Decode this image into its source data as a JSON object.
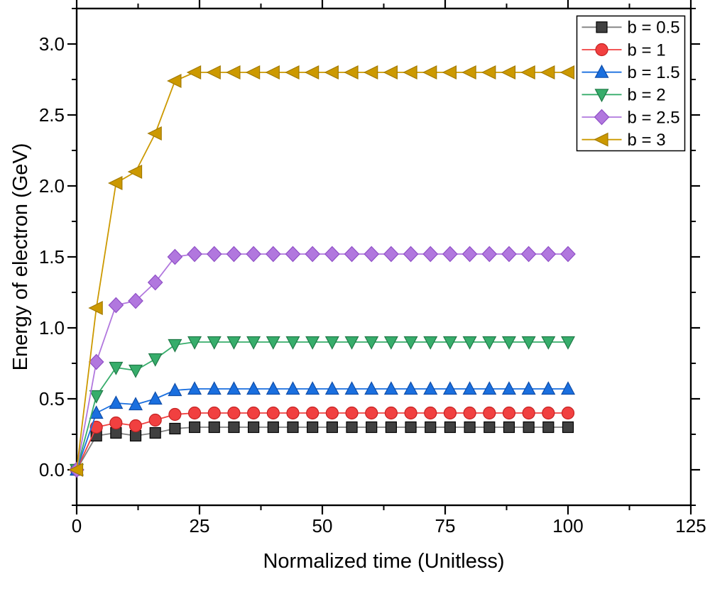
{
  "chart_data": {
    "type": "line",
    "title": "",
    "xlabel": "Normalized time (Unitless)",
    "ylabel": "Energy of electron (GeV)",
    "xlim": [
      0,
      125
    ],
    "ylim": [
      -0.25,
      3.25
    ],
    "grid": false,
    "legend_position": "top-right",
    "x_tick_values": [
      0,
      25,
      50,
      75,
      100,
      125
    ],
    "x_tick_labels": [
      "0",
      "25",
      "50",
      "75",
      "100",
      "125"
    ],
    "x_minor_ticks": [
      12.5,
      37.5,
      62.5,
      87.5,
      112.5
    ],
    "y_tick_values": [
      0.0,
      0.5,
      1.0,
      1.5,
      2.0,
      2.5,
      3.0
    ],
    "y_tick_labels": [
      "0.0",
      "0.5",
      "1.0",
      "1.5",
      "2.0",
      "2.5",
      "3.0"
    ],
    "y_minor_ticks": [
      -0.25,
      0.25,
      0.75,
      1.25,
      1.75,
      2.25,
      2.75,
      3.25
    ],
    "x": [
      0,
      4,
      8,
      12,
      16,
      20,
      24,
      28,
      32,
      36,
      40,
      44,
      48,
      52,
      56,
      60,
      64,
      68,
      72,
      76,
      80,
      84,
      88,
      92,
      96,
      100
    ],
    "series": [
      {
        "name": "b = 0.5",
        "marker": "square",
        "line_color": "#808080",
        "marker_fill": "#404040",
        "marker_edge": "#000000",
        "plateau": 0.3,
        "values": [
          0.0,
          0.24,
          0.26,
          0.24,
          0.26,
          0.29,
          0.3,
          0.3,
          0.3,
          0.3,
          0.3,
          0.3,
          0.3,
          0.3,
          0.3,
          0.3,
          0.3,
          0.3,
          0.3,
          0.3,
          0.3,
          0.3,
          0.3,
          0.3,
          0.3,
          0.3
        ]
      },
      {
        "name": "b = 1",
        "marker": "circle",
        "line_color": "#F14040",
        "marker_fill": "#F14040",
        "marker_edge": "#C42222",
        "plateau": 0.4,
        "values": [
          0.0,
          0.3,
          0.33,
          0.31,
          0.35,
          0.39,
          0.4,
          0.4,
          0.4,
          0.4,
          0.4,
          0.4,
          0.4,
          0.4,
          0.4,
          0.4,
          0.4,
          0.4,
          0.4,
          0.4,
          0.4,
          0.4,
          0.4,
          0.4,
          0.4,
          0.4
        ]
      },
      {
        "name": "b = 1.5",
        "marker": "triangle-up",
        "line_color": "#1A6FDF",
        "marker_fill": "#1A6FDF",
        "marker_edge": "#0F4DA8",
        "plateau": 0.57,
        "values": [
          0.0,
          0.4,
          0.47,
          0.46,
          0.5,
          0.56,
          0.57,
          0.57,
          0.57,
          0.57,
          0.57,
          0.57,
          0.57,
          0.57,
          0.57,
          0.57,
          0.57,
          0.57,
          0.57,
          0.57,
          0.57,
          0.57,
          0.57,
          0.57,
          0.57,
          0.57
        ]
      },
      {
        "name": "b = 2",
        "marker": "triangle-down",
        "line_color": "#37AD6B",
        "marker_fill": "#37AD6B",
        "marker_edge": "#1F7A47",
        "plateau": 0.9,
        "values": [
          0.0,
          0.52,
          0.72,
          0.7,
          0.78,
          0.88,
          0.9,
          0.9,
          0.9,
          0.9,
          0.9,
          0.9,
          0.9,
          0.9,
          0.9,
          0.9,
          0.9,
          0.9,
          0.9,
          0.9,
          0.9,
          0.9,
          0.9,
          0.9,
          0.9,
          0.9
        ]
      },
      {
        "name": "b = 2.5",
        "marker": "diamond",
        "line_color": "#B177DE",
        "marker_fill": "#B177DE",
        "marker_edge": "#8E4EC6",
        "plateau": 1.52,
        "values": [
          0.0,
          0.76,
          1.16,
          1.19,
          1.32,
          1.5,
          1.52,
          1.52,
          1.52,
          1.52,
          1.52,
          1.52,
          1.52,
          1.52,
          1.52,
          1.52,
          1.52,
          1.52,
          1.52,
          1.52,
          1.52,
          1.52,
          1.52,
          1.52,
          1.52,
          1.52
        ]
      },
      {
        "name": "b = 3",
        "marker": "triangle-left",
        "line_color": "#CC9900",
        "marker_fill": "#CC9900",
        "marker_edge": "#A37A00",
        "plateau": 2.8,
        "values": [
          0.0,
          1.14,
          2.02,
          2.1,
          2.37,
          2.74,
          2.8,
          2.8,
          2.8,
          2.8,
          2.8,
          2.8,
          2.8,
          2.8,
          2.8,
          2.8,
          2.8,
          2.8,
          2.8,
          2.8,
          2.8,
          2.8,
          2.8,
          2.8,
          2.8,
          2.8
        ]
      }
    ],
    "colors": {
      "axis": "#000000",
      "text": "#000000",
      "background": "#ffffff",
      "legend_border": "#000000",
      "legend_background": "#ffffff"
    }
  }
}
